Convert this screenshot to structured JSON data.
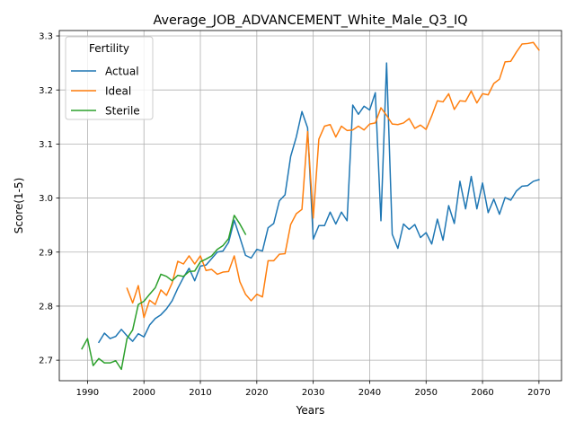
{
  "chart_data": {
    "type": "line",
    "title": "Average_JOB_ADVANCEMENT_White_Male_Q3_IQ",
    "xlabel": "Years",
    "ylabel": "Score(1-5)",
    "xlim": [
      1985,
      2074
    ],
    "ylim": [
      2.662,
      3.31
    ],
    "xticks": [
      1990,
      2000,
      2010,
      2020,
      2030,
      2040,
      2050,
      2060,
      2070
    ],
    "yticks": [
      2.7,
      2.8,
      2.9,
      3.0,
      3.1,
      3.2,
      3.3
    ],
    "grid": true,
    "legend": {
      "title": "Fertility",
      "position": "upper-left"
    },
    "series": [
      {
        "name": "Actual",
        "color": "#1f77b4",
        "points": [
          [
            1992,
            2.733
          ],
          [
            1993,
            2.75
          ],
          [
            1994,
            2.74
          ],
          [
            1995,
            2.744
          ],
          [
            1996,
            2.757
          ],
          [
            1997,
            2.745
          ],
          [
            1998,
            2.735
          ],
          [
            1999,
            2.749
          ],
          [
            2000,
            2.743
          ],
          [
            2001,
            2.765
          ],
          [
            2002,
            2.777
          ],
          [
            2003,
            2.784
          ],
          [
            2004,
            2.795
          ],
          [
            2005,
            2.81
          ],
          [
            2006,
            2.833
          ],
          [
            2007,
            2.853
          ],
          [
            2008,
            2.87
          ],
          [
            2009,
            2.847
          ],
          [
            2010,
            2.874
          ],
          [
            2011,
            2.876
          ],
          [
            2012,
            2.888
          ],
          [
            2013,
            2.9
          ],
          [
            2014,
            2.902
          ],
          [
            2015,
            2.918
          ],
          [
            2016,
            2.959
          ],
          [
            2017,
            2.927
          ],
          [
            2018,
            2.894
          ],
          [
            2019,
            2.889
          ],
          [
            2020,
            2.905
          ],
          [
            2021,
            2.902
          ],
          [
            2022,
            2.945
          ],
          [
            2023,
            2.953
          ],
          [
            2024,
            2.995
          ],
          [
            2025,
            3.006
          ],
          [
            2026,
            3.077
          ],
          [
            2027,
            3.113
          ],
          [
            2028,
            3.16
          ],
          [
            2029,
            3.13
          ],
          [
            2030,
            2.924
          ],
          [
            2031,
            2.949
          ],
          [
            2032,
            2.949
          ],
          [
            2033,
            2.974
          ],
          [
            2034,
            2.952
          ],
          [
            2035,
            2.974
          ],
          [
            2036,
            2.958
          ],
          [
            2037,
            3.172
          ],
          [
            2038,
            3.155
          ],
          [
            2039,
            3.17
          ],
          [
            2040,
            3.163
          ],
          [
            2041,
            3.195
          ],
          [
            2042,
            2.958
          ],
          [
            2043,
            3.25
          ],
          [
            2044,
            2.933
          ],
          [
            2045,
            2.907
          ],
          [
            2046,
            2.952
          ],
          [
            2047,
            2.942
          ],
          [
            2048,
            2.951
          ],
          [
            2049,
            2.927
          ],
          [
            2050,
            2.936
          ],
          [
            2051,
            2.915
          ],
          [
            2052,
            2.961
          ],
          [
            2053,
            2.922
          ],
          [
            2054,
            2.986
          ],
          [
            2055,
            2.953
          ],
          [
            2056,
            3.031
          ],
          [
            2057,
            2.98
          ],
          [
            2058,
            3.04
          ],
          [
            2059,
            2.98
          ],
          [
            2060,
            3.028
          ],
          [
            2061,
            2.973
          ],
          [
            2062,
            2.998
          ],
          [
            2063,
            2.97
          ],
          [
            2064,
            3.001
          ],
          [
            2065,
            2.996
          ],
          [
            2066,
            3.013
          ],
          [
            2067,
            3.022
          ],
          [
            2068,
            3.023
          ],
          [
            2069,
            3.031
          ],
          [
            2070,
            3.034
          ]
        ]
      },
      {
        "name": "Ideal",
        "color": "#ff7f0e",
        "points": [
          [
            1997,
            2.833
          ],
          [
            1998,
            2.806
          ],
          [
            1999,
            2.838
          ],
          [
            2000,
            2.779
          ],
          [
            2001,
            2.811
          ],
          [
            2002,
            2.803
          ],
          [
            2003,
            2.83
          ],
          [
            2004,
            2.82
          ],
          [
            2005,
            2.843
          ],
          [
            2006,
            2.883
          ],
          [
            2007,
            2.878
          ],
          [
            2008,
            2.893
          ],
          [
            2009,
            2.878
          ],
          [
            2010,
            2.893
          ],
          [
            2011,
            2.866
          ],
          [
            2012,
            2.868
          ],
          [
            2013,
            2.859
          ],
          [
            2014,
            2.863
          ],
          [
            2015,
            2.864
          ],
          [
            2016,
            2.893
          ],
          [
            2017,
            2.845
          ],
          [
            2018,
            2.822
          ],
          [
            2019,
            2.81
          ],
          [
            2020,
            2.822
          ],
          [
            2021,
            2.817
          ],
          [
            2022,
            2.884
          ],
          [
            2023,
            2.884
          ],
          [
            2024,
            2.896
          ],
          [
            2025,
            2.897
          ],
          [
            2026,
            2.951
          ],
          [
            2027,
            2.971
          ],
          [
            2028,
            2.979
          ],
          [
            2029,
            3.123
          ],
          [
            2030,
            2.963
          ],
          [
            2031,
            3.109
          ],
          [
            2032,
            3.133
          ],
          [
            2033,
            3.136
          ],
          [
            2034,
            3.113
          ],
          [
            2035,
            3.133
          ],
          [
            2036,
            3.125
          ],
          [
            2037,
            3.126
          ],
          [
            2038,
            3.133
          ],
          [
            2039,
            3.126
          ],
          [
            2040,
            3.137
          ],
          [
            2041,
            3.139
          ],
          [
            2042,
            3.167
          ],
          [
            2043,
            3.153
          ],
          [
            2044,
            3.137
          ],
          [
            2045,
            3.136
          ],
          [
            2046,
            3.139
          ],
          [
            2047,
            3.147
          ],
          [
            2048,
            3.129
          ],
          [
            2049,
            3.135
          ],
          [
            2050,
            3.127
          ],
          [
            2051,
            3.152
          ],
          [
            2052,
            3.18
          ],
          [
            2053,
            3.178
          ],
          [
            2054,
            3.193
          ],
          [
            2055,
            3.164
          ],
          [
            2056,
            3.18
          ],
          [
            2057,
            3.179
          ],
          [
            2058,
            3.198
          ],
          [
            2059,
            3.176
          ],
          [
            2060,
            3.193
          ],
          [
            2061,
            3.191
          ],
          [
            2062,
            3.212
          ],
          [
            2063,
            3.22
          ],
          [
            2064,
            3.252
          ],
          [
            2065,
            3.253
          ],
          [
            2066,
            3.27
          ],
          [
            2067,
            3.285
          ],
          [
            2068,
            3.286
          ],
          [
            2069,
            3.288
          ],
          [
            2070,
            3.274
          ]
        ]
      },
      {
        "name": "Sterile",
        "color": "#2ca02c",
        "points": [
          [
            1989,
            2.721
          ],
          [
            1990,
            2.74
          ],
          [
            1991,
            2.69
          ],
          [
            1992,
            2.703
          ],
          [
            1993,
            2.695
          ],
          [
            1994,
            2.695
          ],
          [
            1995,
            2.699
          ],
          [
            1996,
            2.683
          ],
          [
            1997,
            2.74
          ],
          [
            1998,
            2.756
          ],
          [
            1999,
            2.803
          ],
          [
            2000,
            2.809
          ],
          [
            2001,
            2.822
          ],
          [
            2002,
            2.834
          ],
          [
            2003,
            2.859
          ],
          [
            2004,
            2.855
          ],
          [
            2005,
            2.847
          ],
          [
            2006,
            2.857
          ],
          [
            2007,
            2.855
          ],
          [
            2008,
            2.864
          ],
          [
            2009,
            2.865
          ],
          [
            2010,
            2.882
          ],
          [
            2011,
            2.887
          ],
          [
            2012,
            2.893
          ],
          [
            2013,
            2.905
          ],
          [
            2014,
            2.912
          ],
          [
            2015,
            2.925
          ],
          [
            2016,
            2.968
          ],
          [
            2017,
            2.952
          ],
          [
            2018,
            2.933
          ]
        ]
      }
    ]
  }
}
